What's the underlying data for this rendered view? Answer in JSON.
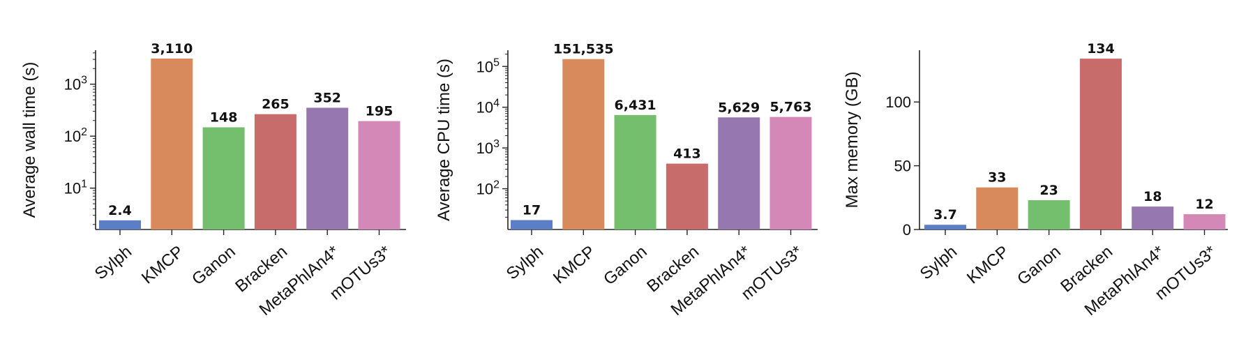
{
  "chart_data": [
    {
      "type": "bar",
      "title": "",
      "xlabel": "",
      "ylabel": "Average wall time (s)",
      "yscale": "log",
      "ylim": [
        1.6,
        4500
      ],
      "yticks": [
        10,
        100,
        1000
      ],
      "ytick_labels": [
        [
          "10",
          "1"
        ],
        [
          "10",
          "2"
        ],
        [
          "10",
          "3"
        ]
      ],
      "categories": [
        "Sylph",
        "KMCP",
        "Ganon",
        "Bracken",
        "MetaPhlAn4*",
        "mOTUs3*"
      ],
      "values": [
        2.4,
        3110,
        148,
        265,
        352,
        195
      ],
      "value_labels": [
        "2.4",
        "3,110",
        "148",
        "265",
        "352",
        "195"
      ],
      "colors": [
        "#5b7ec6",
        "#d98a5c",
        "#73bf6e",
        "#c76b6b",
        "#9778ae",
        "#d488b8"
      ]
    },
    {
      "type": "bar",
      "title": "",
      "xlabel": "",
      "ylabel": "Average CPU time (s)",
      "yscale": "log",
      "ylim": [
        10,
        250000
      ],
      "yticks": [
        100,
        1000,
        10000,
        100000
      ],
      "ytick_labels": [
        [
          "10",
          "2"
        ],
        [
          "10",
          "3"
        ],
        [
          "10",
          "4"
        ],
        [
          "10",
          "5"
        ]
      ],
      "categories": [
        "Sylph",
        "KMCP",
        "Ganon",
        "Bracken",
        "MetaPhlAn4*",
        "mOTUs3*"
      ],
      "values": [
        17,
        151535,
        6431,
        413,
        5629,
        5763
      ],
      "value_labels": [
        "17",
        "151,535",
        "6,431",
        "413",
        "5,629",
        "5,763"
      ],
      "colors": [
        "#5b7ec6",
        "#d98a5c",
        "#73bf6e",
        "#c76b6b",
        "#9778ae",
        "#d488b8"
      ]
    },
    {
      "type": "bar",
      "title": "",
      "xlabel": "",
      "ylabel": "Max memory (GB)",
      "yscale": "linear",
      "ylim": [
        0,
        140.6
      ],
      "yticks": [
        0,
        50,
        100
      ],
      "ytick_labels": [
        [
          "0",
          ""
        ],
        [
          "50",
          ""
        ],
        [
          "100",
          ""
        ]
      ],
      "categories": [
        "Sylph",
        "KMCP",
        "Ganon",
        "Bracken",
        "MetaPhlAn4*",
        "mOTUs3*"
      ],
      "values": [
        3.7,
        33,
        23,
        134,
        18,
        12
      ],
      "value_labels": [
        "3.7",
        "33",
        "23",
        "134",
        "18",
        "12"
      ],
      "colors": [
        "#5b7ec6",
        "#d98a5c",
        "#73bf6e",
        "#c76b6b",
        "#9778ae",
        "#d488b8"
      ]
    }
  ]
}
